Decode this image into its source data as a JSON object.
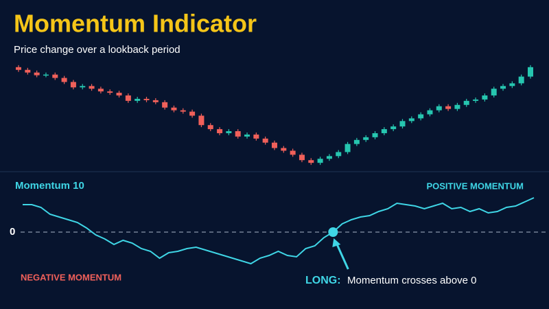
{
  "chart_data": [
    {
      "type": "candlestick",
      "title": "Momentum Indicator",
      "subtitle": "Price change over a lookback period",
      "open": [
        150,
        146,
        142,
        138,
        139,
        134,
        128,
        120,
        122,
        118,
        114,
        112,
        108,
        100,
        103,
        101,
        98,
        90,
        86,
        84,
        78,
        64,
        58,
        52,
        55,
        47,
        50,
        44,
        38,
        30,
        26,
        20,
        12,
        8,
        14,
        18,
        24,
        36,
        42,
        46,
        52,
        58,
        62,
        70,
        74,
        80,
        86,
        92,
        88,
        94,
        100,
        102,
        108,
        118,
        122,
        126,
        136
      ],
      "close": [
        146,
        142,
        138,
        139,
        134,
        128,
        120,
        122,
        118,
        114,
        112,
        108,
        100,
        103,
        101,
        98,
        90,
        86,
        84,
        78,
        64,
        58,
        52,
        55,
        47,
        50,
        44,
        38,
        30,
        26,
        20,
        12,
        8,
        14,
        18,
        24,
        36,
        42,
        46,
        52,
        58,
        62,
        70,
        74,
        80,
        86,
        92,
        88,
        94,
        100,
        102,
        108,
        118,
        122,
        126,
        136,
        150
      ],
      "high": [
        153,
        149,
        145,
        142,
        142,
        137,
        131,
        125,
        125,
        121,
        117,
        115,
        111,
        106,
        106,
        104,
        101,
        93,
        89,
        87,
        81,
        67,
        61,
        58,
        58,
        53,
        53,
        47,
        41,
        33,
        29,
        23,
        15,
        17,
        21,
        27,
        39,
        45,
        49,
        55,
        61,
        65,
        73,
        77,
        83,
        89,
        95,
        95,
        97,
        103,
        105,
        111,
        121,
        125,
        129,
        139,
        153
      ],
      "low": [
        143,
        139,
        135,
        135,
        131,
        125,
        117,
        117,
        115,
        111,
        109,
        105,
        97,
        97,
        98,
        95,
        87,
        83,
        81,
        75,
        61,
        55,
        49,
        49,
        44,
        44,
        41,
        35,
        27,
        23,
        17,
        9,
        5,
        5,
        11,
        15,
        21,
        33,
        39,
        43,
        49,
        55,
        59,
        67,
        71,
        77,
        83,
        85,
        85,
        91,
        97,
        99,
        105,
        115,
        119,
        123,
        133
      ],
      "up_color": "#26c6b0",
      "down_color": "#f0605a",
      "ylim": [
        0,
        160
      ]
    },
    {
      "type": "line",
      "series": [
        {
          "name": "Momentum 10",
          "color": "#3fd6e6",
          "values": [
            40,
            40,
            36,
            26,
            22,
            18,
            14,
            6,
            -4,
            -10,
            -18,
            -12,
            -16,
            -24,
            -28,
            -38,
            -30,
            -28,
            -24,
            -22,
            -26,
            -30,
            -34,
            -38,
            -42,
            -46,
            -38,
            -34,
            -28,
            -34,
            -36,
            -24,
            -20,
            -8,
            0,
            12,
            18,
            22,
            24,
            30,
            34,
            42,
            40,
            38,
            34,
            38,
            42,
            34,
            36,
            30,
            34,
            28,
            30,
            36,
            38,
            44,
            50
          ]
        }
      ],
      "ylim": [
        -60,
        60
      ],
      "yticks": [
        0
      ],
      "annotations": [
        {
          "text": "POSITIVE MOMENTUM",
          "color": "#3fd6e6"
        },
        {
          "text": "NEGATIVE MOMENTUM",
          "color": "#f0605a"
        }
      ],
      "signal": {
        "label": "LONG:",
        "text": "Momentum crosses above 0",
        "color": "#3fd6e6"
      }
    }
  ]
}
